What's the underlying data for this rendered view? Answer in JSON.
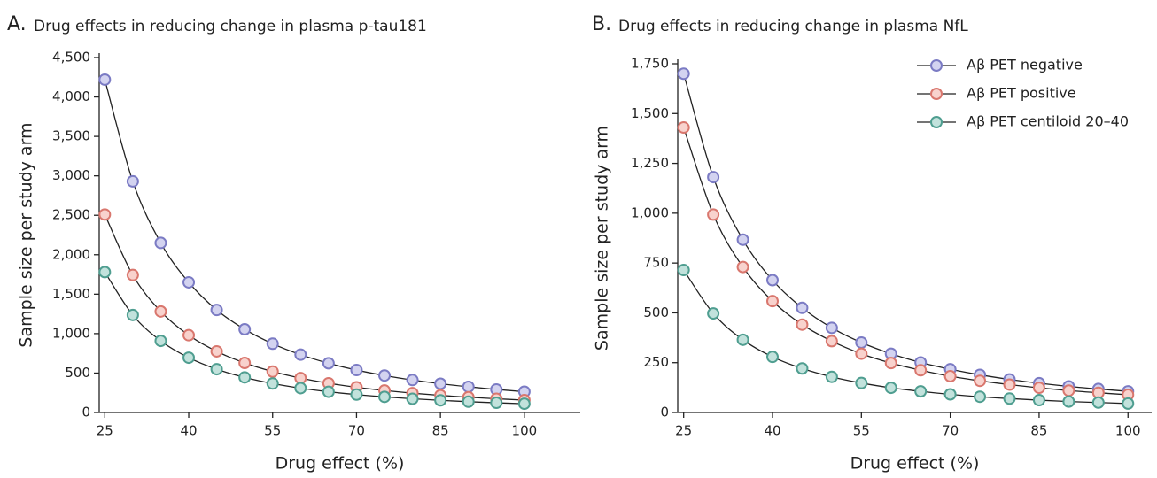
{
  "chart_data": [
    {
      "type": "line",
      "panel_label": "A.",
      "title": "Drug effects in reducing change in plasma p-tau181",
      "xlabel": "Drug effect (%)",
      "ylabel": "Sample size per study arm",
      "x": [
        25,
        30,
        35,
        40,
        45,
        50,
        55,
        60,
        65,
        70,
        75,
        80,
        85,
        90,
        95,
        100
      ],
      "xlim": [
        24,
        110
      ],
      "xticks": [
        25,
        40,
        55,
        70,
        85,
        100
      ],
      "ylim": [
        0,
        4500
      ],
      "yticks": [
        0,
        500,
        {
          "value": 1000,
          "label": "1,000"
        },
        {
          "value": 1500,
          "label": "1,500"
        },
        {
          "value": 2000,
          "label": "2,000"
        },
        {
          "value": 2500,
          "label": "2,500"
        },
        {
          "value": 3000,
          "label": "3,000"
        },
        {
          "value": 3500,
          "label": "3,500"
        },
        {
          "value": 4000,
          "label": "4,000"
        },
        {
          "value": 4500,
          "label": "4,500"
        }
      ],
      "series": [
        {
          "color": "#7b7bc4",
          "fill": "#d3d3f0",
          "values": [
            4220,
            2930,
            2150,
            1650,
            1300,
            1055,
            872,
            733,
            624,
            538,
            469,
            412,
            365,
            326,
            292,
            264
          ]
        },
        {
          "color": "#d9776e",
          "fill": "#f8d2cd",
          "values": [
            2510,
            1743,
            1281,
            980,
            775,
            628,
            519,
            436,
            371,
            320,
            279,
            245,
            217,
            194,
            174,
            157
          ]
        },
        {
          "color": "#4f9e90",
          "fill": "#c2e2dc",
          "values": [
            1780,
            1236,
            908,
            695,
            549,
            445,
            368,
            309,
            263,
            227,
            198,
            174,
            154,
            137,
            123,
            111
          ]
        }
      ]
    },
    {
      "type": "line",
      "panel_label": "B.",
      "title": "Drug effects in reducing change in plasma NfL",
      "xlabel": "Drug effect (%)",
      "ylabel": "Sample size per study arm",
      "x": [
        25,
        30,
        35,
        40,
        45,
        50,
        55,
        60,
        65,
        70,
        75,
        80,
        85,
        90,
        95,
        100
      ],
      "xlim": [
        24,
        104
      ],
      "xticks": [
        25,
        40,
        55,
        70,
        85,
        100
      ],
      "ylim": [
        0,
        1750
      ],
      "yticks": [
        0,
        250,
        500,
        750,
        {
          "value": 1000,
          "label": "1,000"
        },
        {
          "value": 1250,
          "label": "1,250"
        },
        {
          "value": 1500,
          "label": "1,500"
        },
        {
          "value": 1750,
          "label": "1,750"
        }
      ],
      "legend": "upper right",
      "series": [
        {
          "name": "Aβ PET negative",
          "color": "#7b7bc4",
          "fill": "#d3d3f0",
          "values": [
            1700,
            1181,
            867,
            664,
            525,
            425,
            351,
            295,
            251,
            217,
            189,
            166,
            147,
            131,
            118,
            106
          ]
        },
        {
          "name": "Aβ PET positive",
          "color": "#d9776e",
          "fill": "#f8d2cd",
          "values": [
            1430,
            993,
            730,
            559,
            441,
            358,
            295,
            248,
            212,
            182,
            159,
            140,
            124,
            110,
            99,
            89
          ]
        },
        {
          "name": "Aβ PET centiloid 20–40",
          "color": "#4f9e90",
          "fill": "#c2e2dc",
          "values": [
            715,
            497,
            365,
            279,
            221,
            179,
            148,
            124,
            106,
            91,
            79,
            70,
            62,
            55,
            50,
            45
          ]
        }
      ]
    }
  ]
}
